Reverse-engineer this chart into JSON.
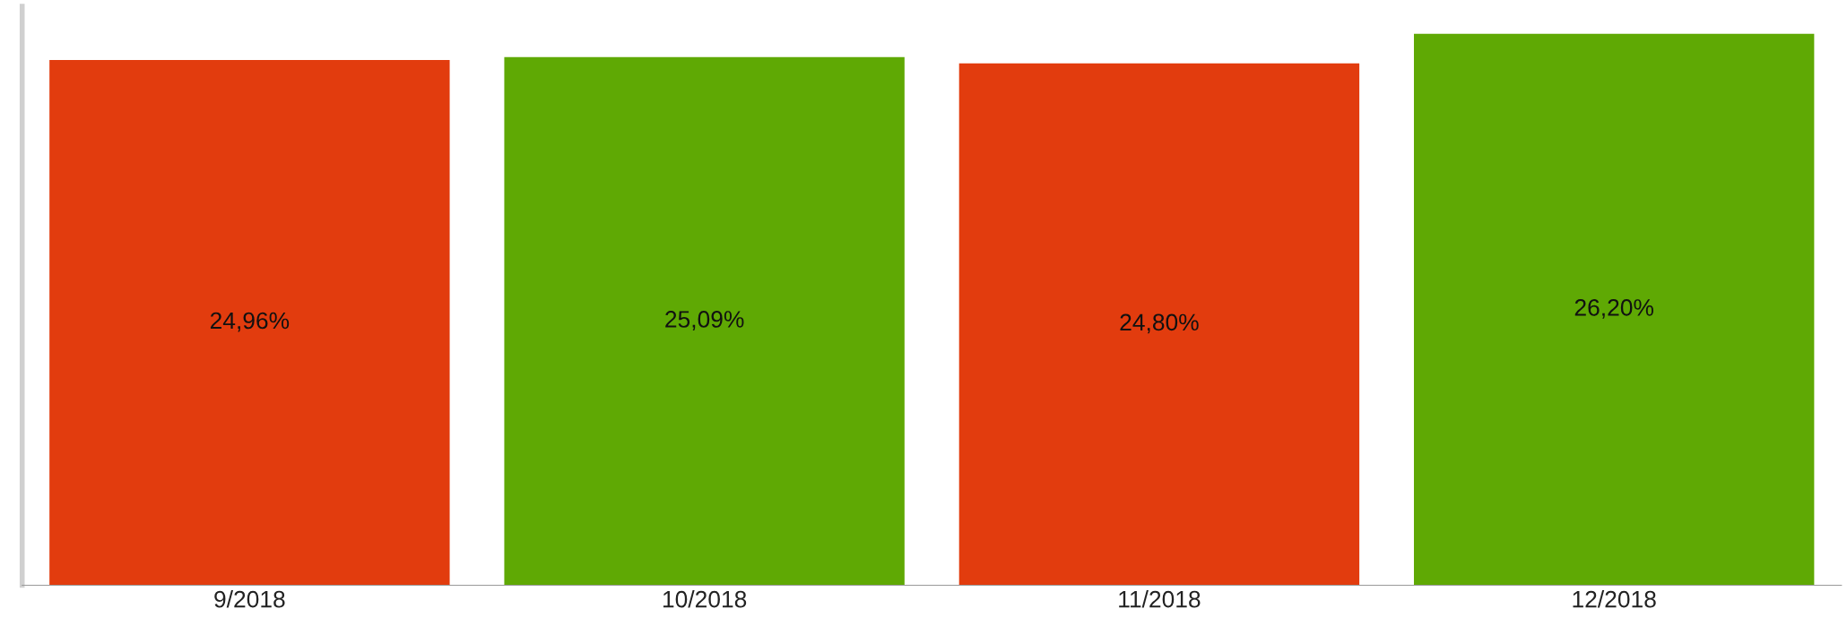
{
  "chart_data": {
    "type": "bar",
    "categories": [
      "9/2018",
      "10/2018",
      "11/2018",
      "12/2018"
    ],
    "values": [
      24.96,
      25.09,
      24.8,
      26.2
    ],
    "colors": [
      "#e23c0e",
      "#5fa904",
      "#e23c0e",
      "#5fa904"
    ],
    "value_labels": [
      "24,96%",
      "25,09%",
      "24,80%",
      "26,20%"
    ],
    "grid": false,
    "legend": false
  }
}
